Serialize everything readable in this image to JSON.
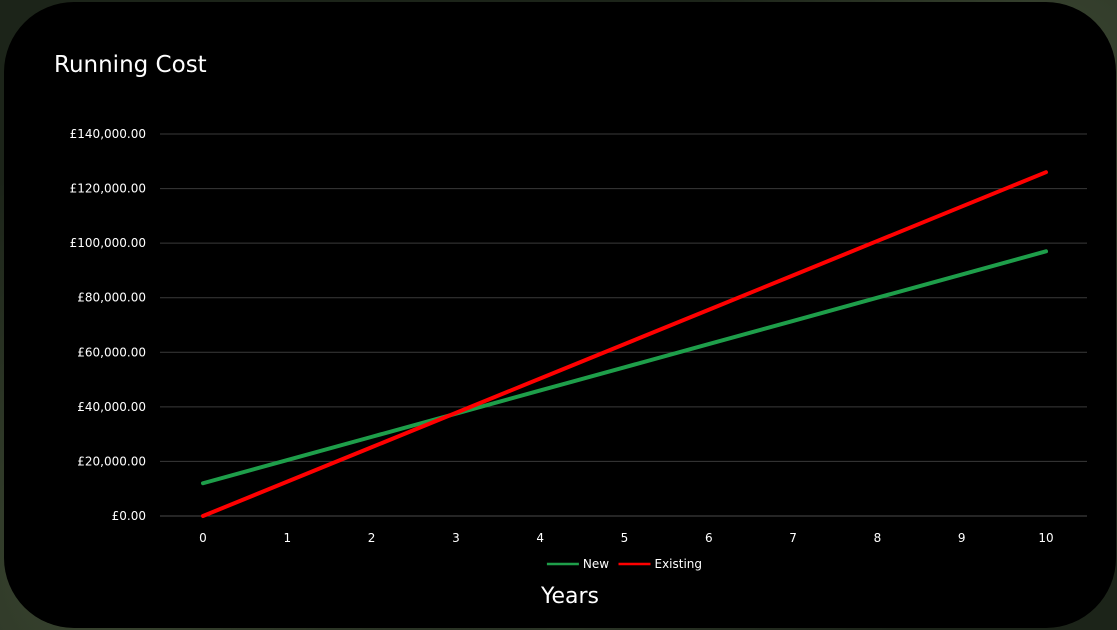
{
  "chart_data": {
    "type": "line",
    "title": "Running Cost",
    "xlabel": "Years",
    "ylabel": "",
    "x": [
      0,
      1,
      2,
      3,
      4,
      5,
      6,
      7,
      8,
      9,
      10
    ],
    "ylim": [
      0,
      140000
    ],
    "yticks": [
      0,
      20000,
      40000,
      60000,
      80000,
      100000,
      120000,
      140000
    ],
    "ytick_labels": [
      "£0.00",
      "£20,000.00",
      "£40,000.00",
      "£60,000.00",
      "£80,000.00",
      "£100,000.00",
      "£120,000.00",
      "£140,000.00"
    ],
    "xtick_labels": [
      "0",
      "1",
      "2",
      "3",
      "4",
      "5",
      "6",
      "7",
      "8",
      "9",
      "10"
    ],
    "grid": true,
    "legend_position": "bottom",
    "series": [
      {
        "name": "New",
        "color": "#1e9e4a",
        "values": [
          12000,
          20500,
          29000,
          37500,
          46000,
          54500,
          63000,
          71500,
          80000,
          88500,
          97000
        ]
      },
      {
        "name": "Existing",
        "color": "#ff0000",
        "values": [
          0,
          12600,
          25200,
          37800,
          50400,
          63000,
          75600,
          88200,
          100800,
          113400,
          126000
        ]
      }
    ]
  }
}
